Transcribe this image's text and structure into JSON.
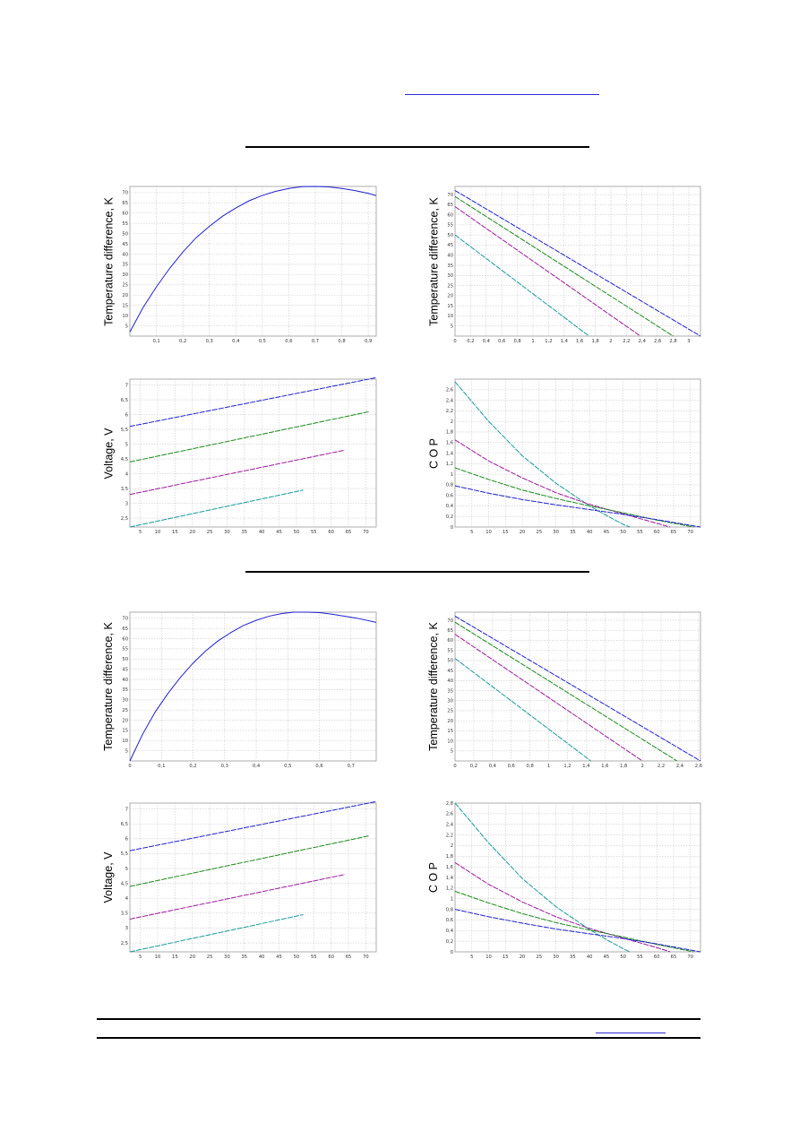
{
  "page": {
    "header_rules": 1,
    "footer": {
      "rules": 2,
      "link_underline": true
    }
  },
  "chart_data": [
    {
      "type": "line",
      "title": "",
      "xlabel": "",
      "ylabel": "Temperature difference, K",
      "xlim": [
        0,
        0.93
      ],
      "ylim": [
        0,
        73
      ],
      "x_ticks": [
        "0,1",
        "0,2",
        "0,3",
        "0,4",
        "0,5",
        "0,6",
        "0,7",
        "0,8",
        "0,9"
      ],
      "x_tick_values": [
        0.1,
        0.2,
        0.3,
        0.4,
        0.5,
        0.6,
        0.7,
        0.8,
        0.9
      ],
      "y_ticks": [
        "5",
        "10",
        "15",
        "20",
        "25",
        "30",
        "35",
        "40",
        "45",
        "50",
        "55",
        "60",
        "65",
        "70"
      ],
      "y_tick_values": [
        5,
        10,
        15,
        20,
        25,
        30,
        35,
        40,
        45,
        50,
        55,
        60,
        65,
        70
      ],
      "series": [
        {
          "color": "#1f1fd0",
          "dashed": false,
          "x": [
            0,
            0.05,
            0.1,
            0.15,
            0.2,
            0.25,
            0.3,
            0.35,
            0.4,
            0.45,
            0.5,
            0.55,
            0.6,
            0.65,
            0.7,
            0.75,
            0.8,
            0.85,
            0.9,
            0.93
          ],
          "y": [
            2,
            14,
            24,
            33,
            41,
            48,
            53.5,
            58.5,
            62.5,
            66,
            68.6,
            70.6,
            72,
            72.9,
            73,
            72.8,
            72,
            71,
            69.6,
            68.5
          ]
        }
      ]
    },
    {
      "type": "line",
      "title": "",
      "xlabel": "",
      "ylabel": "Temperature difference, K",
      "xlim": [
        0,
        3.15
      ],
      "ylim": [
        0,
        74
      ],
      "x_ticks": [
        "0",
        "0,2",
        "0,4",
        "0,6",
        "0,8",
        "1",
        "1,2",
        "1,4",
        "1,6",
        "1,8",
        "2",
        "2,2",
        "2,4",
        "2,6",
        "2,8",
        "3"
      ],
      "x_tick_values": [
        0,
        0.2,
        0.4,
        0.6,
        0.8,
        1,
        1.2,
        1.4,
        1.6,
        1.8,
        2,
        2.2,
        2.4,
        2.6,
        2.8,
        3
      ],
      "y_ticks": [
        "5",
        "10",
        "15",
        "20",
        "25",
        "30",
        "35",
        "40",
        "45",
        "50",
        "55",
        "60",
        "65",
        "70"
      ],
      "y_tick_values": [
        5,
        10,
        15,
        20,
        25,
        30,
        35,
        40,
        45,
        50,
        55,
        60,
        65,
        70
      ],
      "series": [
        {
          "color": "#1f1fd0",
          "dashed": true,
          "x": [
            0,
            3.15
          ],
          "y": [
            72,
            0
          ]
        },
        {
          "color": "#1a8a1a",
          "dashed": true,
          "x": [
            0,
            2.8
          ],
          "y": [
            69,
            0
          ]
        },
        {
          "color": "#9a1a9a",
          "dashed": true,
          "x": [
            0,
            2.38
          ],
          "y": [
            64,
            0
          ]
        },
        {
          "color": "#1a9a9a",
          "dashed": true,
          "x": [
            0,
            1.72
          ],
          "y": [
            50,
            0
          ]
        }
      ]
    },
    {
      "type": "line",
      "title": "",
      "xlabel": "",
      "ylabel": "Voltage, V",
      "xlim": [
        2,
        73
      ],
      "ylim": [
        2.2,
        7.2
      ],
      "x_ticks": [
        "5",
        "10",
        "15",
        "20",
        "25",
        "30",
        "35",
        "40",
        "45",
        "50",
        "55",
        "60",
        "65",
        "70"
      ],
      "x_tick_values": [
        5,
        10,
        15,
        20,
        25,
        30,
        35,
        40,
        45,
        50,
        55,
        60,
        65,
        70
      ],
      "y_ticks": [
        "2,5",
        "3",
        "3,5",
        "4",
        "4,5",
        "5",
        "5,5",
        "6",
        "6,5",
        "7"
      ],
      "y_tick_values": [
        2.5,
        3,
        3.5,
        4,
        4.5,
        5,
        5.5,
        6,
        6.5,
        7
      ],
      "series": [
        {
          "color": "#1f1fd0",
          "dashed": true,
          "x": [
            2,
            73
          ],
          "y": [
            5.6,
            7.25
          ]
        },
        {
          "color": "#1a8a1a",
          "dashed": true,
          "x": [
            2,
            71
          ],
          "y": [
            4.4,
            6.1
          ]
        },
        {
          "color": "#9a1a9a",
          "dashed": true,
          "x": [
            2,
            64
          ],
          "y": [
            3.3,
            4.8
          ]
        },
        {
          "color": "#1a9a9a",
          "dashed": true,
          "x": [
            2,
            52
          ],
          "y": [
            2.2,
            3.45
          ]
        }
      ]
    },
    {
      "type": "line",
      "title": "",
      "xlabel": "",
      "ylabel": "C O P",
      "xlim": [
        0,
        73
      ],
      "ylim": [
        0,
        2.8
      ],
      "x_ticks": [
        "5",
        "10",
        "15",
        "20",
        "25",
        "30",
        "35",
        "40",
        "45",
        "50",
        "55",
        "60",
        "65",
        "70"
      ],
      "x_tick_values": [
        5,
        10,
        15,
        20,
        25,
        30,
        35,
        40,
        45,
        50,
        55,
        60,
        65,
        70
      ],
      "y_ticks": [
        "0",
        "0,2",
        "0,4",
        "0,6",
        "0,8",
        "1",
        "1,2",
        "1,4",
        "1,6",
        "1,8",
        "2",
        "2,2",
        "2,4",
        "2,6"
      ],
      "y_tick_values": [
        0,
        0.2,
        0.4,
        0.6,
        0.8,
        1,
        1.2,
        1.4,
        1.6,
        1.8,
        2,
        2.2,
        2.4,
        2.6
      ],
      "series": [
        {
          "color": "#1a9a9a",
          "dashed": true,
          "x": [
            0,
            10,
            20,
            30,
            40,
            45,
            50,
            52
          ],
          "y": [
            2.75,
            2.0,
            1.35,
            0.83,
            0.4,
            0.22,
            0.05,
            0
          ]
        },
        {
          "color": "#9a1a9a",
          "dashed": true,
          "x": [
            0,
            10,
            20,
            30,
            40,
            50,
            60,
            64
          ],
          "y": [
            1.65,
            1.25,
            0.93,
            0.65,
            0.43,
            0.25,
            0.07,
            0
          ]
        },
        {
          "color": "#1a8a1a",
          "dashed": true,
          "x": [
            0,
            10,
            20,
            30,
            40,
            50,
            60,
            71
          ],
          "y": [
            1.12,
            0.9,
            0.7,
            0.54,
            0.4,
            0.27,
            0.13,
            0
          ]
        },
        {
          "color": "#1f1fd0",
          "dashed": true,
          "x": [
            0,
            10,
            20,
            30,
            40,
            50,
            60,
            73
          ],
          "y": [
            0.78,
            0.64,
            0.52,
            0.42,
            0.33,
            0.24,
            0.14,
            0
          ]
        }
      ]
    },
    {
      "type": "line",
      "title": "",
      "xlabel": "",
      "ylabel": "Temperature difference, K",
      "xlim": [
        0,
        0.78
      ],
      "ylim": [
        0,
        73
      ],
      "x_ticks": [
        "0",
        "0,1",
        "0,2",
        "0,3",
        "0,4",
        "0,5",
        "0,6",
        "0,7"
      ],
      "x_tick_values": [
        0,
        0.1,
        0.2,
        0.3,
        0.4,
        0.5,
        0.6,
        0.7
      ],
      "y_ticks": [
        "5",
        "10",
        "15",
        "20",
        "25",
        "30",
        "35",
        "40",
        "45",
        "50",
        "55",
        "60",
        "65",
        "70"
      ],
      "y_tick_values": [
        5,
        10,
        15,
        20,
        25,
        30,
        35,
        40,
        45,
        50,
        55,
        60,
        65,
        70
      ],
      "series": [
        {
          "color": "#1f1fd0",
          "dashed": false,
          "x": [
            0,
            0.04,
            0.08,
            0.12,
            0.16,
            0.2,
            0.24,
            0.28,
            0.32,
            0.36,
            0.4,
            0.44,
            0.48,
            0.52,
            0.56,
            0.6,
            0.64,
            0.68,
            0.72,
            0.78
          ],
          "y": [
            0,
            13,
            24,
            33,
            41,
            48,
            54,
            59,
            63,
            66.5,
            69,
            71,
            72.3,
            73,
            73,
            72.8,
            72,
            71,
            70,
            68
          ]
        }
      ]
    },
    {
      "type": "line",
      "title": "",
      "xlabel": "",
      "ylabel": "Temperature difference, K",
      "xlim": [
        0,
        2.62
      ],
      "ylim": [
        0,
        74
      ],
      "x_ticks": [
        "0",
        "0,2",
        "0,4",
        "0,6",
        "0,8",
        "1",
        "1,2",
        "1,4",
        "1,6",
        "1,8",
        "2",
        "2,2",
        "2,4",
        "2,6"
      ],
      "x_tick_values": [
        0,
        0.2,
        0.4,
        0.6,
        0.8,
        1,
        1.2,
        1.4,
        1.6,
        1.8,
        2,
        2.2,
        2.4,
        2.6
      ],
      "y_ticks": [
        "5",
        "10",
        "15",
        "20",
        "25",
        "30",
        "35",
        "40",
        "45",
        "50",
        "55",
        "60",
        "65",
        "70"
      ],
      "y_tick_values": [
        5,
        10,
        15,
        20,
        25,
        30,
        35,
        40,
        45,
        50,
        55,
        60,
        65,
        70
      ],
      "series": [
        {
          "color": "#1f1fd0",
          "dashed": true,
          "x": [
            0,
            2.62
          ],
          "y": [
            72,
            0
          ]
        },
        {
          "color": "#1a8a1a",
          "dashed": true,
          "x": [
            0,
            2.37
          ],
          "y": [
            69,
            0
          ]
        },
        {
          "color": "#9a1a9a",
          "dashed": true,
          "x": [
            0,
            2.0
          ],
          "y": [
            63,
            0
          ]
        },
        {
          "color": "#1a9a9a",
          "dashed": true,
          "x": [
            0,
            1.45
          ],
          "y": [
            51,
            0
          ]
        }
      ]
    },
    {
      "type": "line",
      "title": "",
      "xlabel": "",
      "ylabel": "Voltage, V",
      "xlim": [
        2,
        73
      ],
      "ylim": [
        2.2,
        7.2
      ],
      "x_ticks": [
        "5",
        "10",
        "15",
        "20",
        "25",
        "30",
        "35",
        "40",
        "45",
        "50",
        "55",
        "60",
        "65",
        "70"
      ],
      "x_tick_values": [
        5,
        10,
        15,
        20,
        25,
        30,
        35,
        40,
        45,
        50,
        55,
        60,
        65,
        70
      ],
      "y_ticks": [
        "2,5",
        "3",
        "3,5",
        "4",
        "4,5",
        "5",
        "5,5",
        "6",
        "6,5",
        "7"
      ],
      "y_tick_values": [
        2.5,
        3,
        3.5,
        4,
        4.5,
        5,
        5.5,
        6,
        6.5,
        7
      ],
      "series": [
        {
          "color": "#1f1fd0",
          "dashed": true,
          "x": [
            2,
            73
          ],
          "y": [
            5.6,
            7.25
          ]
        },
        {
          "color": "#1a8a1a",
          "dashed": true,
          "x": [
            2,
            71
          ],
          "y": [
            4.4,
            6.1
          ]
        },
        {
          "color": "#9a1a9a",
          "dashed": true,
          "x": [
            2,
            64
          ],
          "y": [
            3.3,
            4.8
          ]
        },
        {
          "color": "#1a9a9a",
          "dashed": true,
          "x": [
            2,
            52
          ],
          "y": [
            2.2,
            3.45
          ]
        }
      ]
    },
    {
      "type": "line",
      "title": "",
      "xlabel": "",
      "ylabel": "C O P",
      "xlim": [
        0,
        73
      ],
      "ylim": [
        0,
        2.8
      ],
      "x_ticks": [
        "5",
        "10",
        "15",
        "20",
        "25",
        "30",
        "35",
        "40",
        "45",
        "50",
        "55",
        "60",
        "65",
        "70"
      ],
      "x_tick_values": [
        5,
        10,
        15,
        20,
        25,
        30,
        35,
        40,
        45,
        50,
        55,
        60,
        65,
        70
      ],
      "y_ticks": [
        "0",
        "0,2",
        "0,4",
        "0,6",
        "0,8",
        "1",
        "1,2",
        "1,4",
        "1,6",
        "1,8",
        "2",
        "2,2",
        "2,4",
        "2,6",
        "2,8"
      ],
      "y_tick_values": [
        0,
        0.2,
        0.4,
        0.6,
        0.8,
        1,
        1.2,
        1.4,
        1.6,
        1.8,
        2,
        2.2,
        2.4,
        2.6,
        2.8
      ],
      "series": [
        {
          "color": "#1a9a9a",
          "dashed": true,
          "x": [
            0,
            10,
            20,
            30,
            40,
            45,
            50,
            52
          ],
          "y": [
            2.8,
            2.05,
            1.38,
            0.85,
            0.42,
            0.23,
            0.06,
            0
          ]
        },
        {
          "color": "#9a1a9a",
          "dashed": true,
          "x": [
            0,
            10,
            20,
            30,
            40,
            50,
            60,
            64
          ],
          "y": [
            1.68,
            1.27,
            0.94,
            0.66,
            0.44,
            0.26,
            0.08,
            0
          ]
        },
        {
          "color": "#1a8a1a",
          "dashed": true,
          "x": [
            0,
            10,
            20,
            30,
            40,
            50,
            60,
            71
          ],
          "y": [
            1.14,
            0.92,
            0.72,
            0.55,
            0.41,
            0.28,
            0.14,
            0
          ]
        },
        {
          "color": "#1f1fd0",
          "dashed": true,
          "x": [
            0,
            10,
            20,
            30,
            40,
            50,
            60,
            73
          ],
          "y": [
            0.8,
            0.66,
            0.54,
            0.43,
            0.34,
            0.25,
            0.15,
            0
          ]
        }
      ]
    }
  ]
}
